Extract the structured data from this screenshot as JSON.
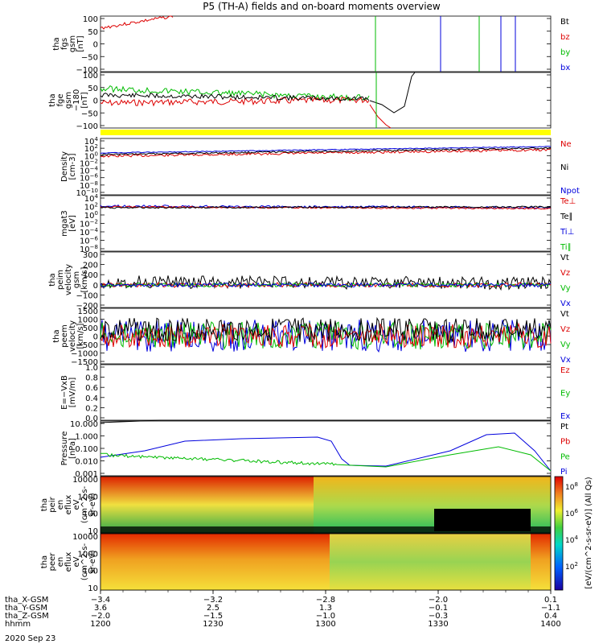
{
  "chart_data": {
    "type": "line",
    "title": "P5 (TH-A) fields and on-board moments overview",
    "date_label": "2020 Sep 23",
    "panels": [
      {
        "id": "fgs",
        "ylabel": [
          "tha",
          "fgs",
          "gsm",
          "[nT]"
        ],
        "yticks": [
          "100",
          "50",
          "0",
          "−50",
          "−100"
        ],
        "legend": [
          {
            "label": "Bt",
            "color": "#000000"
          },
          {
            "label": "bz",
            "color": "#dd0000"
          },
          {
            "label": "by",
            "color": "#00bb00"
          },
          {
            "label": "bx",
            "color": "#0000dd"
          }
        ],
        "ylim": [
          -100,
          100
        ]
      },
      {
        "id": "fge",
        "ylabel": [
          "tha",
          "fge",
          "gsm",
          "−180",
          "[nT]"
        ],
        "yticks": [
          "100",
          "50",
          "0",
          "−50",
          "−100"
        ],
        "legend": [],
        "ylim": [
          -120,
          120
        ]
      },
      {
        "id": "density",
        "ylabel": [
          "Density",
          "[cm-3]"
        ],
        "yticks": [
          "10^4",
          "10^2",
          "10^0",
          "10^-2",
          "10^-4",
          "10^-6",
          "10^-8",
          "10^-10"
        ],
        "legend": [
          {
            "label": "Ne",
            "color": "#dd0000"
          },
          {
            "label": "Ni",
            "color": "#000000"
          },
          {
            "label": "Npot",
            "color": "#0000dd"
          }
        ],
        "scale": "log"
      },
      {
        "id": "temp",
        "ylabel": [
          "mgat3",
          "[eV]"
        ],
        "yticks": [
          "10^4",
          "10^2",
          "10^0",
          "10^-2",
          "10^-4",
          "10^-6",
          "10^-8"
        ],
        "legend": [
          {
            "label": "Te⊥",
            "color": "#dd0000"
          },
          {
            "label": "Te∥",
            "color": "#000000"
          },
          {
            "label": "Ti⊥",
            "color": "#0000dd"
          },
          {
            "label": "Ti∥",
            "color": "#00bb00"
          }
        ],
        "scale": "log"
      },
      {
        "id": "peim",
        "ylabel": [
          "tha",
          "peim",
          "velocity",
          "gsm",
          "[km/s]"
        ],
        "yticks": [
          "300",
          "200",
          "100",
          "0",
          "−100",
          "−200"
        ],
        "legend": [
          {
            "label": "Vt",
            "color": "#000000"
          },
          {
            "label": "Vz",
            "color": "#dd0000"
          },
          {
            "label": "Vy",
            "color": "#00bb00"
          },
          {
            "label": "Vx",
            "color": "#0000dd"
          }
        ],
        "ylim": [
          -200,
          300
        ]
      },
      {
        "id": "peem",
        "ylabel": [
          "tha",
          "peem",
          "velocity",
          "[km/s]"
        ],
        "yticks": [
          "1500",
          "1000",
          "500",
          "0",
          "−500",
          "−1000",
          "−1500"
        ],
        "legend": [
          {
            "label": "Vt",
            "color": "#000000"
          },
          {
            "label": "Vz",
            "color": "#dd0000"
          },
          {
            "label": "Vy",
            "color": "#00bb00"
          },
          {
            "label": "Vx",
            "color": "#0000dd"
          }
        ],
        "ylim": [
          -1500,
          1500
        ]
      },
      {
        "id": "efield",
        "ylabel": [
          "E=−VxB",
          "[mV/m]"
        ],
        "yticks": [
          "1.0",
          "0.8",
          "0.6",
          "0.4",
          "0.2",
          "0.0"
        ],
        "legend": [
          {
            "label": "Ez",
            "color": "#dd0000"
          },
          {
            "label": "Ey",
            "color": "#00bb00"
          },
          {
            "label": "Ex",
            "color": "#0000dd"
          }
        ],
        "ylim": [
          0,
          1
        ]
      },
      {
        "id": "pressure",
        "ylabel": [
          "Pressure",
          "[nPa]"
        ],
        "yticks": [
          "10.000",
          "1.000",
          "0.100",
          "0.010",
          "0.001"
        ],
        "legend": [
          {
            "label": "Pt",
            "color": "#000000"
          },
          {
            "label": "Pb",
            "color": "#dd0000"
          },
          {
            "label": "Pe",
            "color": "#00bb00"
          },
          {
            "label": "Pi",
            "color": "#0000dd"
          }
        ],
        "scale": "log"
      },
      {
        "id": "peir",
        "ylabel": [
          "tha",
          "peir",
          "en",
          "eflux",
          "eV",
          "(cm^2-s-",
          "sr-eV)"
        ],
        "yticks": [
          "10000",
          "1000",
          "100",
          "10"
        ],
        "legend": [],
        "scale": "log"
      },
      {
        "id": "peer",
        "ylabel": [
          "tha",
          "peer",
          "en",
          "eflux",
          "eV",
          "(cm^2-s-",
          "sr-eV)"
        ],
        "yticks": [
          "10000",
          "1000",
          "100",
          "10"
        ],
        "legend": [],
        "scale": "log"
      }
    ],
    "colorbar": {
      "label": "[eV/(cm^2-s-sr-eV)] (All Qs)",
      "ticks": [
        "10^8",
        "10^6",
        "10^4",
        "10^2"
      ]
    },
    "time_axis": {
      "row_labels": [
        "tha_X-GSM",
        "tha_Y-GSM",
        "tha_Z-GSM",
        "hhmm"
      ],
      "columns": [
        {
          "x": "−3.4",
          "y": "3.6",
          "z": "−2.0",
          "t": "1200"
        },
        {
          "x": "−3.2",
          "y": "2.5",
          "z": "−1.5",
          "t": "1230"
        },
        {
          "x": "−2.8",
          "y": "1.3",
          "z": "−1.0",
          "t": "1300"
        },
        {
          "x": "−2.0",
          "y": "−0.1",
          "z": "−0.3",
          "t": "1330"
        },
        {
          "x": "0.1",
          "y": "−1.1",
          "z": "0.4",
          "t": "1400"
        }
      ],
      "range": [
        "1200",
        "1400"
      ]
    }
  }
}
